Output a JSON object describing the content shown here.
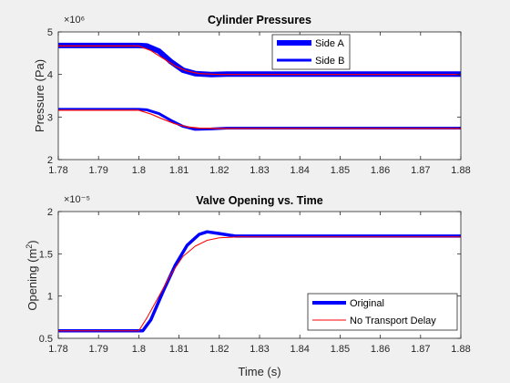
{
  "chart_data": [
    {
      "type": "line",
      "title": "Cylinder Pressures",
      "xlabel": "",
      "ylabel": "Pressure (Pa)",
      "y_exponent": "×10⁶",
      "xlim": [
        1.78,
        1.88
      ],
      "ylim": [
        2,
        5
      ],
      "x_ticks": [
        "1.78",
        "1.79",
        "1.8",
        "1.81",
        "1.82",
        "1.83",
        "1.84",
        "1.85",
        "1.86",
        "1.87",
        "1.88"
      ],
      "y_ticks": [
        "2",
        "3",
        "4",
        "5"
      ],
      "legend_position": "top-right",
      "series": [
        {
          "name": "Side A",
          "color": "#0000ff",
          "values": [
            [
              1.78,
              4.68
            ],
            [
              1.8,
              4.68
            ],
            [
              1.802,
              4.67
            ],
            [
              1.805,
              4.55
            ],
            [
              1.808,
              4.3
            ],
            [
              1.811,
              4.1
            ],
            [
              1.814,
              4.02
            ],
            [
              1.818,
              4.0
            ],
            [
              1.822,
              4.01
            ],
            [
              1.88,
              4.01
            ]
          ]
        },
        {
          "name": "Side B",
          "color": "#0000ff",
          "values": [
            [
              1.78,
              3.18
            ],
            [
              1.8,
              3.18
            ],
            [
              1.802,
              3.17
            ],
            [
              1.805,
              3.08
            ],
            [
              1.808,
              2.92
            ],
            [
              1.811,
              2.78
            ],
            [
              1.814,
              2.71
            ],
            [
              1.818,
              2.72
            ],
            [
              1.822,
              2.74
            ],
            [
              1.88,
              2.74
            ]
          ]
        },
        {
          "color": "#ff0000",
          "values": [
            [
              1.78,
              4.67
            ],
            [
              1.8,
              4.67
            ],
            [
              1.803,
              4.56
            ],
            [
              1.806,
              4.38
            ],
            [
              1.809,
              4.2
            ],
            [
              1.812,
              4.08
            ],
            [
              1.815,
              4.02
            ],
            [
              1.82,
              4.0
            ],
            [
              1.88,
              4.0
            ]
          ]
        },
        {
          "color": "#ff0000",
          "values": [
            [
              1.78,
              3.16
            ],
            [
              1.8,
              3.16
            ],
            [
              1.803,
              3.07
            ],
            [
              1.806,
              2.95
            ],
            [
              1.809,
              2.84
            ],
            [
              1.812,
              2.77
            ],
            [
              1.815,
              2.74
            ],
            [
              1.82,
              2.73
            ],
            [
              1.88,
              2.73
            ]
          ]
        }
      ]
    },
    {
      "type": "line",
      "title": "Valve Opening vs. Time",
      "xlabel": "Time (s)",
      "ylabel": "Opening (m",
      "ylabel_sup": "2",
      "ylabel_end": ")",
      "y_exponent": "×10⁻⁵",
      "xlim": [
        1.78,
        1.88
      ],
      "ylim": [
        0.5,
        2
      ],
      "x_ticks": [
        "1.78",
        "1.79",
        "1.8",
        "1.81",
        "1.82",
        "1.83",
        "1.84",
        "1.85",
        "1.86",
        "1.87",
        "1.88"
      ],
      "y_ticks": [
        "0.5",
        "1",
        "1.5",
        "2"
      ],
      "legend_position": "bottom-right",
      "series": [
        {
          "name": "Original",
          "color": "#0000ff",
          "values": [
            [
              1.78,
              0.59
            ],
            [
              1.801,
              0.59
            ],
            [
              1.803,
              0.72
            ],
            [
              1.806,
              1.05
            ],
            [
              1.809,
              1.36
            ],
            [
              1.812,
              1.6
            ],
            [
              1.815,
              1.73
            ],
            [
              1.817,
              1.76
            ],
            [
              1.82,
              1.74
            ],
            [
              1.824,
              1.71
            ],
            [
              1.83,
              1.71
            ],
            [
              1.88,
              1.71
            ]
          ]
        },
        {
          "name": "No Transport Delay",
          "color": "#ff0000",
          "values": [
            [
              1.78,
              0.59
            ],
            [
              1.8,
              0.59
            ],
            [
              1.802,
              0.74
            ],
            [
              1.805,
              1.0
            ],
            [
              1.808,
              1.26
            ],
            [
              1.811,
              1.47
            ],
            [
              1.814,
              1.59
            ],
            [
              1.817,
              1.66
            ],
            [
              1.82,
              1.69
            ],
            [
              1.825,
              1.7
            ],
            [
              1.88,
              1.7
            ]
          ]
        }
      ]
    }
  ]
}
